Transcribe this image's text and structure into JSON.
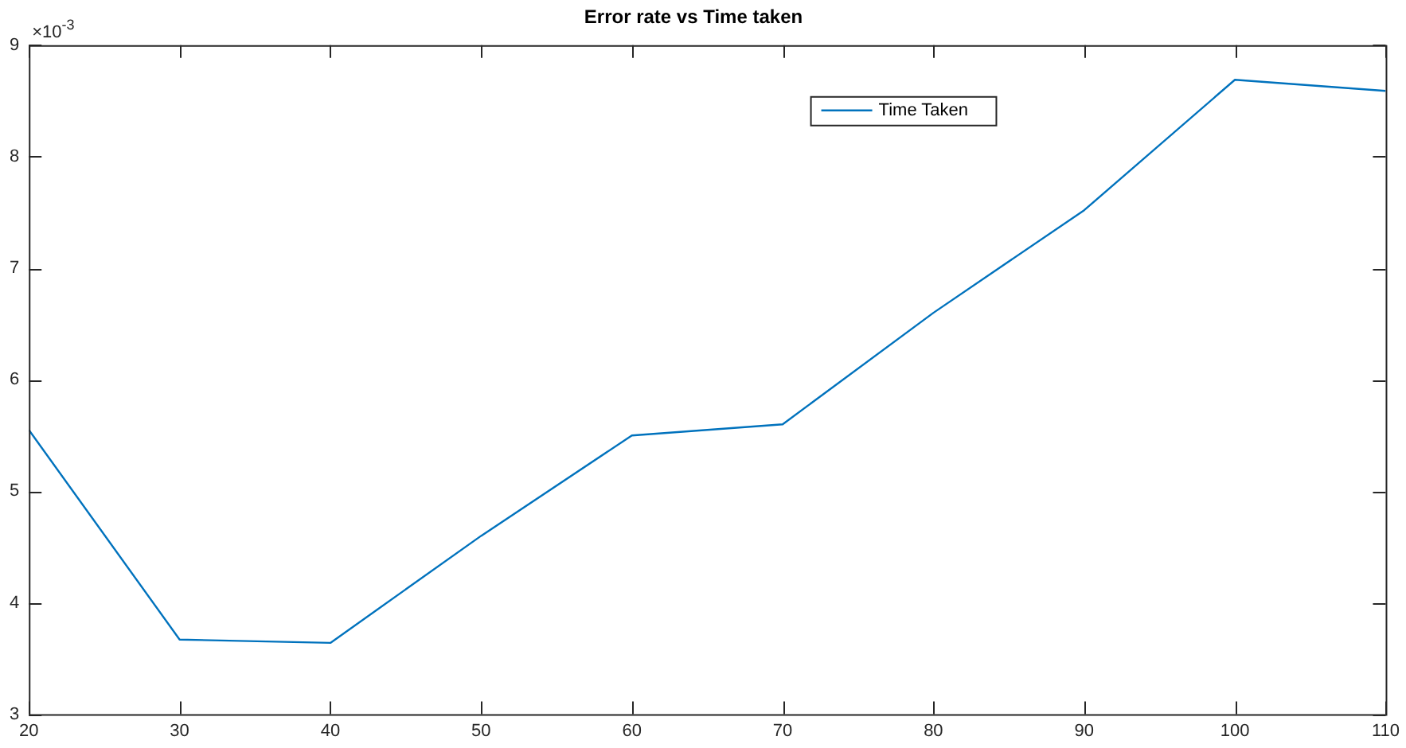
{
  "chart_data": {
    "type": "line",
    "title": "Error rate vs Time taken",
    "x": [
      20,
      30,
      40,
      50,
      60,
      70,
      80,
      90,
      100,
      110
    ],
    "series": [
      {
        "name": "Time Taken",
        "color": "#0072bd",
        "values": [
          5.55,
          3.67,
          3.64,
          4.6,
          5.5,
          5.6,
          6.6,
          7.52,
          8.69,
          8.59
        ]
      }
    ],
    "xlim": [
      20,
      110
    ],
    "xticks": [
      20,
      30,
      40,
      50,
      60,
      70,
      80,
      90,
      100,
      110
    ],
    "ylim": [
      3,
      9
    ],
    "yticks": [
      3,
      4,
      5,
      6,
      7,
      8,
      9
    ],
    "annotations": [
      "×10$^{-3}$"
    ],
    "legend": "top right",
    "grid": false,
    "marker": "none",
    "line_style": "solid"
  }
}
